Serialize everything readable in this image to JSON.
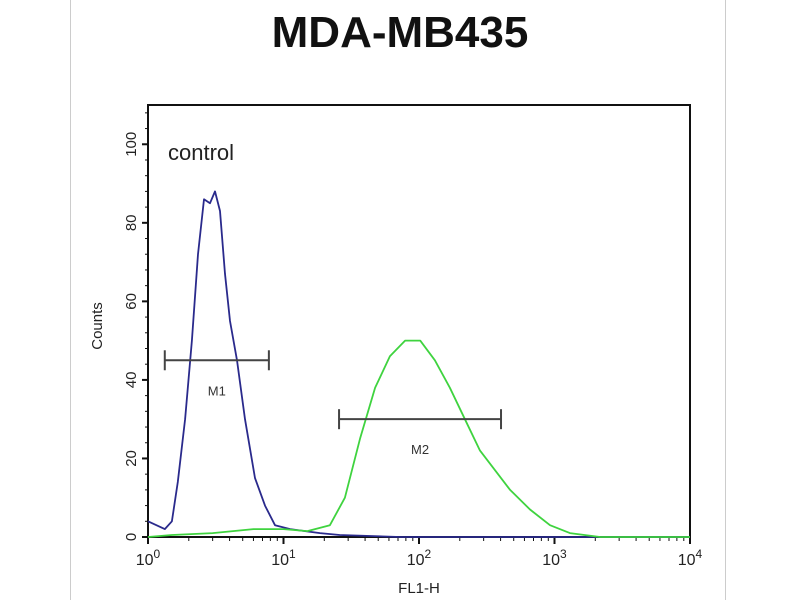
{
  "chart_data": {
    "type": "line",
    "title": "MDA-MB435",
    "xlabel": "FL1-H",
    "ylabel": "Counts",
    "xscale": "log",
    "xlim": [
      1,
      10000
    ],
    "ylim": [
      0,
      110
    ],
    "x_ticks": [
      {
        "base": "10",
        "exp": "0"
      },
      {
        "base": "10",
        "exp": "1"
      },
      {
        "base": "10",
        "exp": "2"
      },
      {
        "base": "10",
        "exp": "3"
      },
      {
        "base": "10",
        "exp": "4"
      }
    ],
    "y_ticks": [
      0,
      20,
      40,
      60,
      80,
      100
    ],
    "annotation": "control",
    "series": [
      {
        "color": "#2a2a8c",
        "x": [
          1,
          1.33,
          1.5,
          1.66,
          1.88,
          2.11,
          2.34,
          2.59,
          2.87,
          3.12,
          3.4,
          3.7,
          4.03,
          4.54,
          5.2,
          6.16,
          7.3,
          8.65,
          11.2,
          18.6,
          26,
          72,
          10000
        ],
        "y": [
          4,
          2,
          4,
          14,
          30,
          50,
          72,
          86,
          85,
          88,
          83,
          67,
          55,
          45,
          30,
          15,
          8,
          3,
          2,
          1,
          0.5,
          0,
          0
        ]
      },
      {
        "color": "#3fd33f",
        "x": [
          1,
          1.5,
          3,
          6,
          10,
          15,
          22,
          28.4,
          36.7,
          47.4,
          61,
          79,
          102,
          131,
          169,
          218,
          282,
          364,
          470,
          659,
          927,
          1300,
          2168,
          10000
        ],
        "y": [
          0,
          0.5,
          1,
          2,
          2,
          1.5,
          3,
          10,
          25,
          38,
          46,
          50,
          50,
          45,
          38,
          30,
          22,
          17,
          12,
          7,
          3,
          1,
          0,
          0
        ]
      }
    ],
    "markers": [
      {
        "label": "M1",
        "x1": 1.33,
        "x2": 7.8,
        "y": 45
      },
      {
        "label": "M2",
        "x1": 25.7,
        "x2": 403,
        "y": 30
      }
    ]
  }
}
